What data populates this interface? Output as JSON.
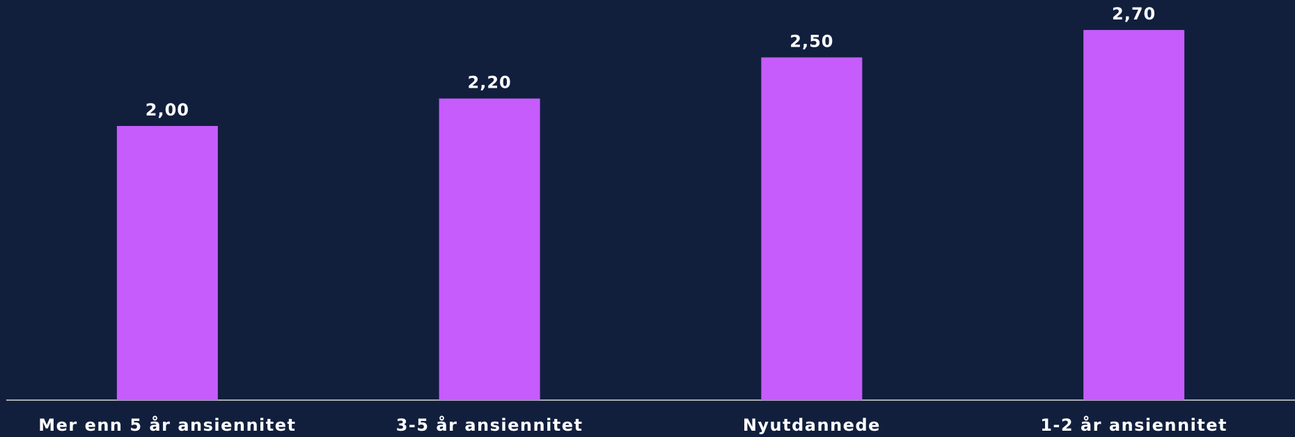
{
  "chart_data": {
    "type": "bar",
    "categories": [
      "Mer enn 5 år ansiennitet",
      "3-5 år ansiennitet",
      "Nyutdannede",
      "1-2 år ansiennitet"
    ],
    "values": [
      2.0,
      2.2,
      2.5,
      2.7
    ],
    "value_labels": [
      "2,00",
      "2,20",
      "2,50",
      "2,70"
    ],
    "color": "#c55cfb"
  }
}
